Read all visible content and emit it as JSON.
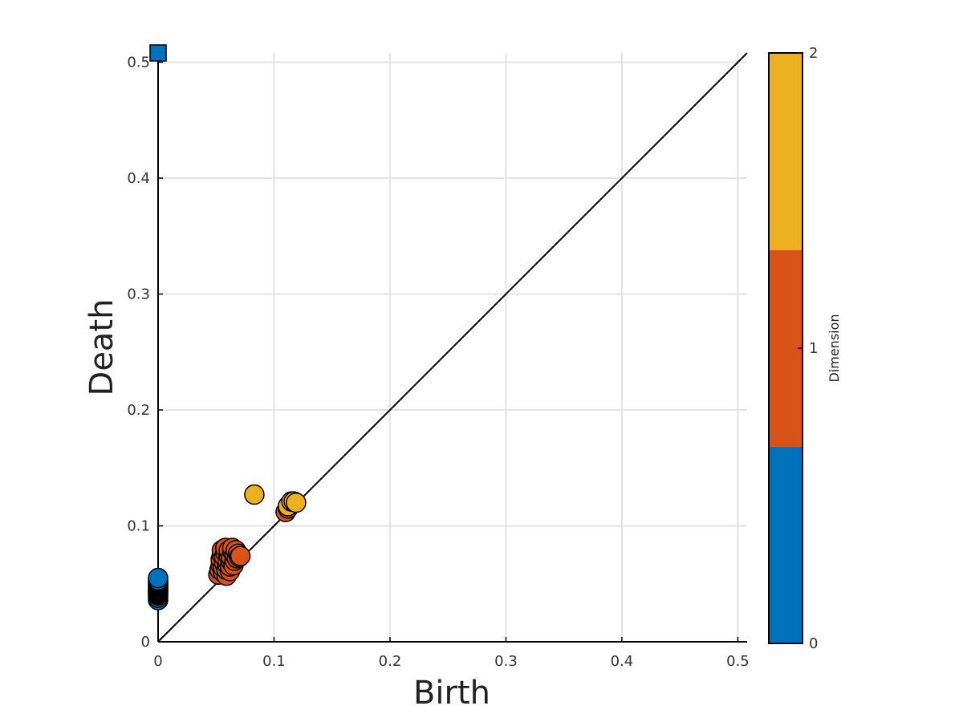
{
  "chart_data": {
    "type": "scatter",
    "title": "",
    "xlabel": "Birth",
    "ylabel": "Death",
    "xlim": [
      0,
      0.508
    ],
    "ylim": [
      0,
      0.508
    ],
    "xticks": [
      0,
      0.1,
      0.2,
      0.3,
      0.4,
      0.5
    ],
    "yticks": [
      0,
      0.1,
      0.2,
      0.3,
      0.4,
      0.5
    ],
    "xtick_labels": [
      "0",
      "0.1",
      "0.2",
      "0.3",
      "0.4",
      "0.5"
    ],
    "ytick_labels": [
      "0",
      "0.1",
      "0.2",
      "0.3",
      "0.4",
      "0.5"
    ],
    "grid": true,
    "diagonal": true,
    "colorbar": {
      "title": "Dimension",
      "ticks": [
        0,
        1,
        2
      ],
      "tick_labels": [
        "0",
        "1",
        "2"
      ],
      "colors": [
        "#0072BD",
        "#D95319",
        "#EDB120"
      ]
    },
    "series": [
      {
        "dimension": 0,
        "color": "#0072BD",
        "points": [
          [
            0,
            0.036
          ],
          [
            0,
            0.038
          ],
          [
            0,
            0.04
          ],
          [
            0,
            0.041
          ],
          [
            0,
            0.042
          ],
          [
            0,
            0.043
          ],
          [
            0,
            0.044
          ],
          [
            0,
            0.045
          ],
          [
            0,
            0.046
          ],
          [
            0,
            0.047
          ],
          [
            0,
            0.048
          ],
          [
            0,
            0.049
          ],
          [
            0,
            0.05
          ],
          [
            0,
            0.051
          ],
          [
            0,
            0.052
          ],
          [
            0,
            0.053
          ],
          [
            0,
            0.055
          ]
        ],
        "infinite_points": [
          [
            0,
            0.508
          ]
        ]
      },
      {
        "dimension": 1,
        "color": "#D95319",
        "points": [
          [
            0.052,
            0.058
          ],
          [
            0.053,
            0.062
          ],
          [
            0.054,
            0.066
          ],
          [
            0.054,
            0.071
          ],
          [
            0.055,
            0.075
          ],
          [
            0.055,
            0.079
          ],
          [
            0.056,
            0.06
          ],
          [
            0.056,
            0.064
          ],
          [
            0.057,
            0.068
          ],
          [
            0.057,
            0.073
          ],
          [
            0.058,
            0.077
          ],
          [
            0.058,
            0.081
          ],
          [
            0.059,
            0.057
          ],
          [
            0.059,
            0.062
          ],
          [
            0.06,
            0.066
          ],
          [
            0.06,
            0.07
          ],
          [
            0.061,
            0.074
          ],
          [
            0.061,
            0.079
          ],
          [
            0.062,
            0.061
          ],
          [
            0.062,
            0.065
          ],
          [
            0.063,
            0.069
          ],
          [
            0.063,
            0.073
          ],
          [
            0.064,
            0.078
          ],
          [
            0.064,
            0.081
          ],
          [
            0.065,
            0.066
          ],
          [
            0.066,
            0.07
          ],
          [
            0.066,
            0.075
          ],
          [
            0.067,
            0.079
          ],
          [
            0.068,
            0.072
          ],
          [
            0.069,
            0.076
          ],
          [
            0.07,
            0.073
          ],
          [
            0.071,
            0.074
          ],
          [
            0.11,
            0.112
          ],
          [
            0.112,
            0.115
          ]
        ]
      },
      {
        "dimension": 2,
        "color": "#EDB120",
        "points": [
          [
            0.083,
            0.127
          ],
          [
            0.112,
            0.117
          ],
          [
            0.115,
            0.121
          ],
          [
            0.117,
            0.121
          ],
          [
            0.119,
            0.12
          ]
        ]
      }
    ]
  }
}
